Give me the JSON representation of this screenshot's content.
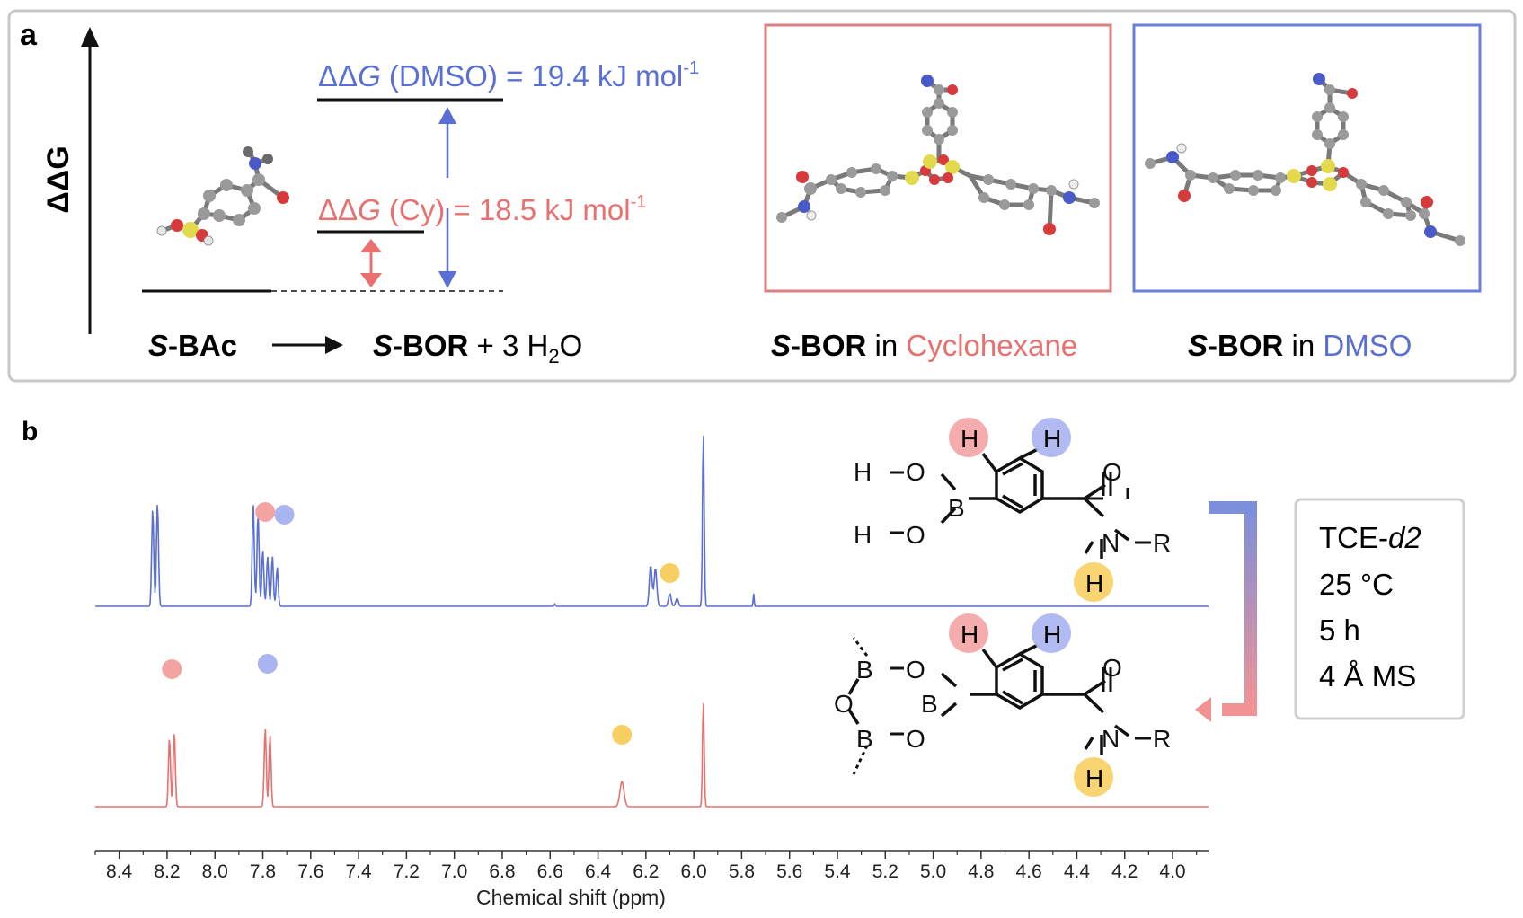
{
  "panel_a": {
    "label": "a",
    "axis_label": "ΔΔG",
    "dmso": {
      "prefix": "ΔΔ",
      "var": "G",
      "solvent": " (DMSO)",
      "rest": " = 19.4 kJ mol",
      "sup": "-1"
    },
    "cy": {
      "prefix": "ΔΔ",
      "var": "G",
      "solvent": " (Cy)",
      "rest": " = 18.5 kJ mol",
      "sup": "-1"
    },
    "reactant": {
      "italic": "S",
      "rest": "-BAc"
    },
    "product": {
      "italic": "S",
      "bold": "-BOR",
      "rest": " + 3 H",
      "sub": "2",
      "tail": "O"
    },
    "cyclohexane_caption": {
      "italic": "S",
      "bold": "-BOR",
      "mid": " in ",
      "solvent": "Cyclohexane"
    },
    "dmso_caption": {
      "italic": "S",
      "bold": "-BOR",
      "mid": " in ",
      "solvent": "DMSO"
    }
  },
  "panel_b": {
    "label": "b",
    "conditions": [
      "TCE-",
      "d2",
      "25 °C",
      "5 h",
      "4 Å MS"
    ],
    "atoms": {
      "H": "H",
      "O": "O",
      "B": "B",
      "N": "N",
      "R": "R"
    }
  },
  "colors": {
    "blue": "#5a6fd6",
    "red": "#e8706f",
    "pink_dot": "#f4a3a3",
    "blue_dot": "#a9b4f0",
    "yellow_dot": "#f7cf63",
    "box_red": "#d98080",
    "box_blue": "#6b7fd8"
  },
  "chart_data": {
    "type": "line",
    "xlabel": "Chemical shift (ppm)",
    "xlim": [
      8.5,
      3.85
    ],
    "x_ticks": [
      8.4,
      8.2,
      8.0,
      7.8,
      7.6,
      7.4,
      7.2,
      7.0,
      6.8,
      6.6,
      6.4,
      6.2,
      6.0,
      5.8,
      5.6,
      5.4,
      5.2,
      5.0,
      4.8,
      4.6,
      4.4,
      4.2,
      4.0
    ],
    "x_tick_labels": [
      "8.4",
      "8.2",
      "8.0",
      "7.8",
      "7.6",
      "7.4",
      "7.2",
      "7.0",
      "6.8",
      "6.6",
      "6.4",
      "6.2",
      "6.0",
      "5.8",
      "5.6",
      "5.4",
      "5.2",
      "5.0",
      "4.8",
      "4.6",
      "4.4",
      "4.2",
      "4.0"
    ],
    "series": [
      {
        "color": "#5a6fd6",
        "peaks": [
          {
            "x": 8.26,
            "h": 0.62,
            "w": 0.006
          },
          {
            "x": 8.24,
            "h": 0.66,
            "w": 0.006
          },
          {
            "x": 7.84,
            "h": 0.66,
            "w": 0.006
          },
          {
            "x": 7.82,
            "h": 0.6,
            "w": 0.006
          },
          {
            "x": 7.8,
            "h": 0.36,
            "w": 0.006
          },
          {
            "x": 7.78,
            "h": 0.32,
            "w": 0.006
          },
          {
            "x": 7.76,
            "h": 0.32,
            "w": 0.006
          },
          {
            "x": 7.74,
            "h": 0.25,
            "w": 0.006
          },
          {
            "x": 6.18,
            "h": 0.26,
            "w": 0.008
          },
          {
            "x": 6.16,
            "h": 0.24,
            "w": 0.008
          },
          {
            "x": 6.1,
            "h": 0.08,
            "w": 0.008
          },
          {
            "x": 6.07,
            "h": 0.05,
            "w": 0.008
          },
          {
            "x": 5.96,
            "h": 1.12,
            "w": 0.005
          },
          {
            "x": 5.75,
            "h": 0.08,
            "w": 0.003
          },
          {
            "x": 6.58,
            "h": 0.015,
            "w": 0.004
          }
        ]
      },
      {
        "color": "#e8706f",
        "peaks": [
          {
            "x": 8.19,
            "h": 0.44,
            "w": 0.006
          },
          {
            "x": 8.17,
            "h": 0.48,
            "w": 0.006
          },
          {
            "x": 7.79,
            "h": 0.5,
            "w": 0.006
          },
          {
            "x": 7.77,
            "h": 0.46,
            "w": 0.006
          },
          {
            "x": 6.3,
            "h": 0.16,
            "w": 0.012
          },
          {
            "x": 5.96,
            "h": 0.68,
            "w": 0.005
          }
        ]
      }
    ],
    "markers": [
      {
        "series": 0,
        "x": 7.79,
        "color": "pink"
      },
      {
        "series": 0,
        "x": 7.71,
        "color": "blue"
      },
      {
        "series": 0,
        "x": 6.1,
        "color": "yellow"
      },
      {
        "series": 1,
        "x": 8.18,
        "color": "pink"
      },
      {
        "series": 1,
        "x": 7.78,
        "color": "blue"
      },
      {
        "series": 1,
        "x": 6.3,
        "color": "yellow"
      }
    ]
  }
}
